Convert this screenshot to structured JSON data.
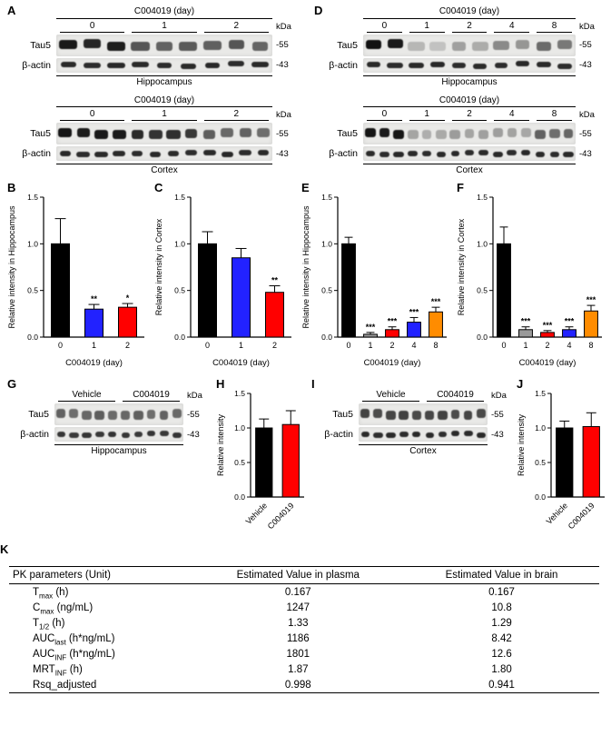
{
  "letters": {
    "A": "A",
    "B": "B",
    "C": "C",
    "D": "D",
    "E": "E",
    "F": "F",
    "G": "G",
    "H": "H",
    "I": "I",
    "J": "J",
    "K": "K"
  },
  "blots": {
    "A_hip": {
      "title": "C004019 (day)",
      "kda": "kDa",
      "caption": "Hippocampus",
      "groups": [
        {
          "label": "0",
          "lanes": 3
        },
        {
          "label": "1",
          "lanes": 3
        },
        {
          "label": "2",
          "lanes": 3
        }
      ],
      "rows": [
        {
          "label": "Tau5",
          "marker": "-55",
          "kind": "tau",
          "intensities": [
            0.93,
            0.87,
            0.91,
            0.66,
            0.6,
            0.64,
            0.61,
            0.66,
            0.59
          ]
        },
        {
          "label": "β-actin",
          "marker": "-43",
          "kind": "actin",
          "intensities": [
            0.85,
            0.84,
            0.86,
            0.85,
            0.84,
            0.85,
            0.86,
            0.84,
            0.85
          ]
        }
      ]
    },
    "A_ctx": {
      "title": "C004019 (day)",
      "kda": "kDa",
      "caption": "Cortex",
      "groups": [
        {
          "label": "0",
          "lanes": 4
        },
        {
          "label": "1",
          "lanes": 4
        },
        {
          "label": "2",
          "lanes": 4
        }
      ],
      "rows": [
        {
          "label": "Tau5",
          "marker": "-55",
          "kind": "tau",
          "intensities": [
            0.95,
            0.91,
            0.93,
            0.92,
            0.85,
            0.81,
            0.83,
            0.79,
            0.62,
            0.57,
            0.6,
            0.55
          ]
        },
        {
          "label": "β-actin",
          "marker": "-43",
          "kind": "actin",
          "intensities": [
            0.86,
            0.84,
            0.85,
            0.85,
            0.84,
            0.86,
            0.85,
            0.84,
            0.85,
            0.86,
            0.84,
            0.85
          ]
        }
      ]
    },
    "D_hip": {
      "title": "C004019 (day)",
      "kda": "kDa",
      "caption": "Hippocampus",
      "groups": [
        {
          "label": "0",
          "lanes": 2
        },
        {
          "label": "1",
          "lanes": 2
        },
        {
          "label": "2",
          "lanes": 2
        },
        {
          "label": "4",
          "lanes": 2
        },
        {
          "label": "8",
          "lanes": 2
        }
      ],
      "rows": [
        {
          "label": "Tau5",
          "marker": "-55",
          "kind": "tau",
          "intensities": [
            0.96,
            0.93,
            0.22,
            0.17,
            0.32,
            0.27,
            0.42,
            0.37,
            0.56,
            0.5
          ]
        },
        {
          "label": "β-actin",
          "marker": "-43",
          "kind": "actin",
          "intensities": [
            0.85,
            0.84,
            0.85,
            0.86,
            0.84,
            0.85,
            0.84,
            0.86,
            0.85,
            0.84
          ]
        }
      ]
    },
    "D_ctx": {
      "title": "C004019 (day)",
      "kda": "kDa",
      "caption": "Cortex",
      "groups": [
        {
          "label": "0",
          "lanes": 3
        },
        {
          "label": "1",
          "lanes": 3
        },
        {
          "label": "2",
          "lanes": 3
        },
        {
          "label": "4",
          "lanes": 3
        },
        {
          "label": "8",
          "lanes": 3
        }
      ],
      "rows": [
        {
          "label": "Tau5",
          "marker": "-55",
          "kind": "tau",
          "intensities": [
            0.95,
            0.92,
            0.94,
            0.3,
            0.26,
            0.28,
            0.34,
            0.3,
            0.32,
            0.33,
            0.31,
            0.29,
            0.6,
            0.55,
            0.58
          ]
        },
        {
          "label": "β-actin",
          "marker": "-43",
          "kind": "actin",
          "intensities": [
            0.85,
            0.84,
            0.86,
            0.85,
            0.84,
            0.85,
            0.86,
            0.84,
            0.85,
            0.85,
            0.84,
            0.86,
            0.85,
            0.84,
            0.85
          ]
        }
      ]
    },
    "G": {
      "kda": "kDa",
      "caption": "Hippocampus",
      "groups": [
        {
          "label": "Vehicle",
          "lanes": 5
        },
        {
          "label": "C004019",
          "lanes": 5
        }
      ],
      "rows": [
        {
          "label": "Tau5",
          "marker": "-55",
          "kind": "tau",
          "intensities": [
            0.6,
            0.55,
            0.58,
            0.62,
            0.56,
            0.58,
            0.61,
            0.55,
            0.6,
            0.57
          ]
        },
        {
          "label": "β-actin",
          "marker": "-43",
          "kind": "actin",
          "intensities": [
            0.8,
            0.78,
            0.8,
            0.79,
            0.81,
            0.8,
            0.78,
            0.8,
            0.79,
            0.8
          ]
        }
      ]
    },
    "I": {
      "kda": "kDa",
      "caption": "Cortex",
      "groups": [
        {
          "label": "Vehicle",
          "lanes": 5
        },
        {
          "label": "C004019",
          "lanes": 5
        }
      ],
      "rows": [
        {
          "label": "Tau5",
          "marker": "-55",
          "kind": "tau",
          "intensities": [
            0.74,
            0.7,
            0.73,
            0.75,
            0.71,
            0.72,
            0.74,
            0.7,
            0.73,
            0.71
          ]
        },
        {
          "label": "β-actin",
          "marker": "-43",
          "kind": "actin",
          "intensities": [
            0.85,
            0.83,
            0.85,
            0.84,
            0.86,
            0.85,
            0.83,
            0.85,
            0.84,
            0.85
          ]
        }
      ]
    }
  },
  "chart_data": [
    {
      "id": "B",
      "type": "bar",
      "title": "",
      "ylabel": "Relative intensity in Hippocampus",
      "xlabel": "C004019 (day)",
      "categories": [
        "0",
        "1",
        "2"
      ],
      "values": [
        1.0,
        0.3,
        0.32
      ],
      "errors": [
        0.27,
        0.05,
        0.04
      ],
      "sig": [
        "",
        "**",
        "*"
      ],
      "colors": [
        "#000000",
        "#2222ff",
        "#ff0000"
      ],
      "ylim": [
        0,
        1.5
      ],
      "yticks": [
        0,
        0.5,
        1.0,
        1.5
      ],
      "rotate_xticks": false
    },
    {
      "id": "C",
      "type": "bar",
      "title": "",
      "ylabel": "Relative intensity in Cortex",
      "xlabel": "C004019 (day)",
      "categories": [
        "0",
        "1",
        "2"
      ],
      "values": [
        1.0,
        0.85,
        0.48
      ],
      "errors": [
        0.13,
        0.1,
        0.07
      ],
      "sig": [
        "",
        "",
        "**"
      ],
      "colors": [
        "#000000",
        "#2222ff",
        "#ff0000"
      ],
      "ylim": [
        0,
        1.5
      ],
      "yticks": [
        0,
        0.5,
        1.0,
        1.5
      ],
      "rotate_xticks": false
    },
    {
      "id": "E",
      "type": "bar",
      "title": "",
      "ylabel": "Relative intensity in Hippocampus",
      "xlabel": "C004019 (day)",
      "categories": [
        "0",
        "1",
        "2",
        "4",
        "8"
      ],
      "values": [
        1.0,
        0.03,
        0.08,
        0.16,
        0.27
      ],
      "errors": [
        0.07,
        0.02,
        0.03,
        0.05,
        0.05
      ],
      "sig": [
        "",
        "***",
        "***",
        "***",
        "***"
      ],
      "colors": [
        "#000000",
        "#9a9a9a",
        "#ff0000",
        "#2222ff",
        "#ff8c00"
      ],
      "ylim": [
        0,
        1.5
      ],
      "yticks": [
        0,
        0.5,
        1.0,
        1.5
      ],
      "rotate_xticks": false
    },
    {
      "id": "F",
      "type": "bar",
      "title": "",
      "ylabel": "Relative intensity in Cortex",
      "xlabel": "C004019 (day)",
      "categories": [
        "0",
        "1",
        "2",
        "4",
        "8"
      ],
      "values": [
        1.0,
        0.08,
        0.05,
        0.08,
        0.28
      ],
      "errors": [
        0.18,
        0.03,
        0.02,
        0.03,
        0.06
      ],
      "sig": [
        "",
        "***",
        "***",
        "***",
        "***"
      ],
      "colors": [
        "#000000",
        "#9a9a9a",
        "#ff0000",
        "#2222ff",
        "#ff8c00"
      ],
      "ylim": [
        0,
        1.5
      ],
      "yticks": [
        0,
        0.5,
        1.0,
        1.5
      ],
      "rotate_xticks": false
    },
    {
      "id": "H",
      "type": "bar",
      "title": "",
      "ylabel": "Relative intensity",
      "xlabel": "",
      "categories": [
        "Vehicle",
        "C004019"
      ],
      "values": [
        1.0,
        1.05
      ],
      "errors": [
        0.13,
        0.2
      ],
      "sig": [
        "",
        ""
      ],
      "colors": [
        "#000000",
        "#ff0000"
      ],
      "ylim": [
        0,
        1.5
      ],
      "yticks": [
        0,
        0.5,
        1.0,
        1.5
      ],
      "rotate_xticks": true
    },
    {
      "id": "J",
      "type": "bar",
      "title": "",
      "ylabel": "Relative intensity",
      "xlabel": "",
      "categories": [
        "Vehicle",
        "C004019"
      ],
      "values": [
        1.0,
        1.02
      ],
      "errors": [
        0.1,
        0.2
      ],
      "sig": [
        "",
        ""
      ],
      "colors": [
        "#000000",
        "#ff0000"
      ],
      "ylim": [
        0,
        1.5
      ],
      "yticks": [
        0,
        0.5,
        1.0,
        1.5
      ],
      "rotate_xticks": true
    }
  ],
  "table": {
    "headers": [
      "PK parameters (Unit)",
      "Estimated Value in plasma",
      "Estimated Value in brain"
    ],
    "rows": [
      {
        "p1": "T",
        "sub": "max",
        "p2": " (h)",
        "plasma": "0.167",
        "brain": "0.167"
      },
      {
        "p1": "C",
        "sub": "max",
        "p2": " (ng/mL)",
        "plasma": "1247",
        "brain": "10.8"
      },
      {
        "p1": "T",
        "sub": "1/2",
        "p2": " (h)",
        "plasma": "1.33",
        "brain": "1.29"
      },
      {
        "p1": "AUC",
        "sub": "last",
        "p2": " (h*ng/mL)",
        "plasma": "1186",
        "brain": "8.42"
      },
      {
        "p1": "AUC",
        "sub": "INF",
        "p2": " (h*ng/mL)",
        "plasma": "1801",
        "brain": "12.6"
      },
      {
        "p1": "MRT",
        "sub": "INF",
        "p2": " (h)",
        "plasma": "1.87",
        "brain": "1.80"
      },
      {
        "p1": "Rsq_adjusted",
        "sub": "",
        "p2": "",
        "plasma": "0.998",
        "brain": "0.941"
      }
    ]
  }
}
